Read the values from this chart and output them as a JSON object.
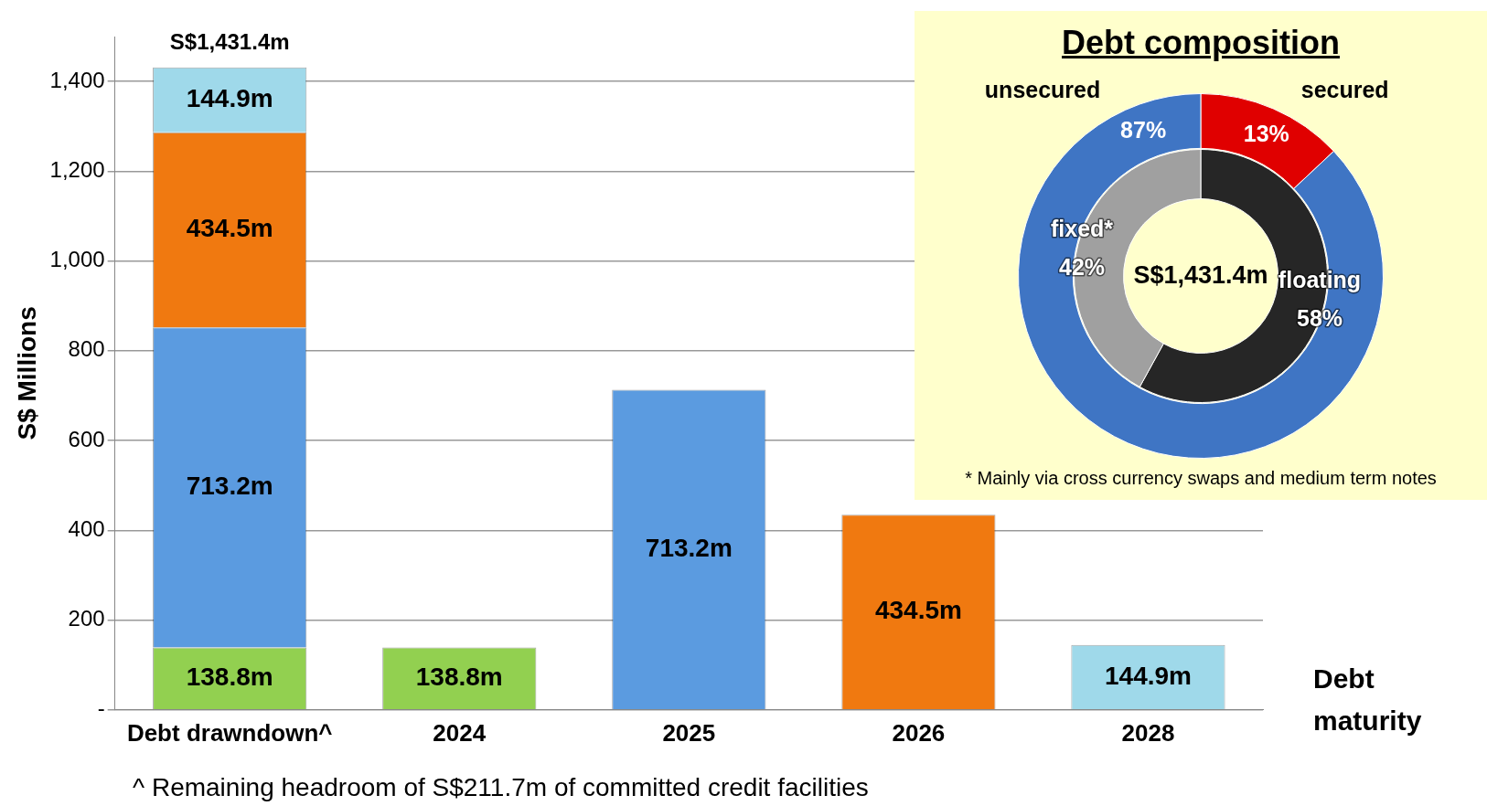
{
  "chart_data": [
    {
      "type": "bar",
      "stacked": true,
      "categories": [
        "Debt drawndown^",
        "2024",
        "2025",
        "2026",
        "2028"
      ],
      "series": [
        {
          "color": "#92d050",
          "values": [
            138.8,
            138.8,
            null,
            null,
            null
          ],
          "value_labels": [
            "138.8m",
            "138.8m",
            null,
            null,
            null
          ]
        },
        {
          "color": "#5b9be0",
          "values": [
            713.2,
            null,
            713.2,
            null,
            null
          ],
          "value_labels": [
            "713.2m",
            null,
            "713.2m",
            null,
            null
          ]
        },
        {
          "color": "#f07910",
          "values": [
            434.5,
            null,
            null,
            434.5,
            null
          ],
          "value_labels": [
            "434.5m",
            null,
            null,
            "434.5m",
            null
          ]
        },
        {
          "color": "#9fd9ea",
          "values": [
            144.9,
            null,
            null,
            null,
            144.9
          ],
          "value_labels": [
            "144.9m",
            null,
            null,
            null,
            "144.9m"
          ]
        }
      ],
      "totals": [
        "S$1,431.4m",
        null,
        null,
        null,
        null
      ],
      "ylabel": "S$ Millions",
      "xlabel": "Debt maturity",
      "ylim": [
        0,
        1500
      ],
      "yticks": [
        {
          "value": 0,
          "label": "-"
        },
        {
          "value": 200,
          "label": "200"
        },
        {
          "value": 400,
          "label": "400"
        },
        {
          "value": 600,
          "label": "600"
        },
        {
          "value": 800,
          "label": "800"
        },
        {
          "value": 1000,
          "label": "1,000"
        },
        {
          "value": 1200,
          "label": "1,200"
        },
        {
          "value": 1400,
          "label": "1,400"
        }
      ],
      "grid": "y",
      "legend": false,
      "annotations": [
        "^ Remaining headroom of S$211.7m of committed credit facilities"
      ]
    },
    {
      "type": "donut",
      "title": "Debt composition",
      "categories": [
        "secured",
        "unsecured"
      ],
      "values": [
        13,
        87
      ],
      "colors": [
        "#e00000",
        "#3f75c4"
      ],
      "value_labels": [
        "13%",
        "87%"
      ],
      "legend": false,
      "annotations": [
        "* Mainly via cross currency swaps and medium term notes"
      ]
    },
    {
      "type": "donut",
      "categories": [
        "floating",
        "fixed*"
      ],
      "values": [
        58,
        42
      ],
      "colors": [
        "#262626",
        "#a0a0a0"
      ],
      "value_labels": [
        "58%",
        "42%"
      ],
      "legend": false,
      "annotations": [
        "S$1,431.4m"
      ]
    }
  ]
}
